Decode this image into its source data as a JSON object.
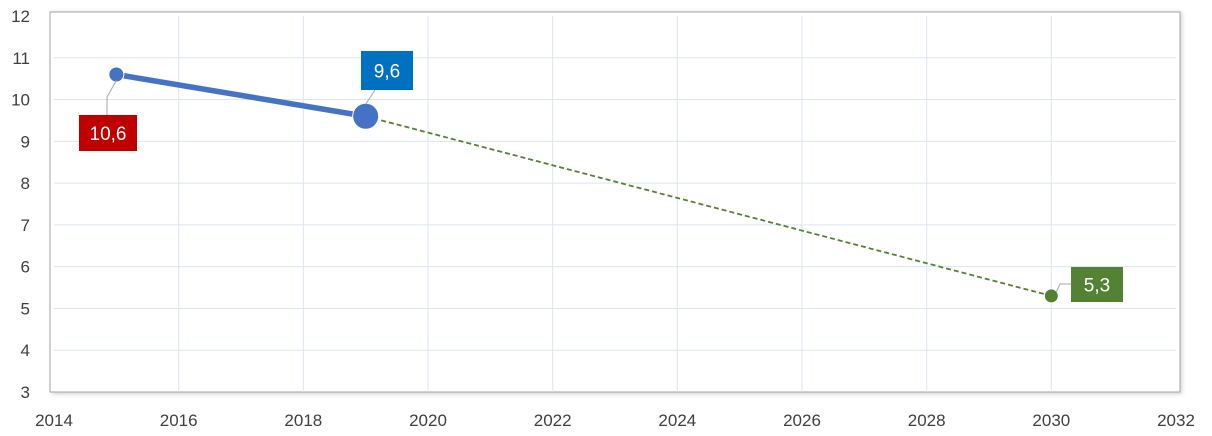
{
  "chart_data": {
    "type": "line",
    "title": "",
    "xlabel": "",
    "ylabel": "",
    "xlim": [
      2014,
      2032
    ],
    "ylim": [
      3,
      12
    ],
    "x_ticks": [
      "2014",
      "2016",
      "2018",
      "2020",
      "2022",
      "2024",
      "2026",
      "2028",
      "2030",
      "2032"
    ],
    "y_ticks": [
      "3",
      "4",
      "5",
      "6",
      "7",
      "8",
      "9",
      "10",
      "11",
      "12"
    ],
    "grid": true,
    "legend": "none",
    "series": [
      {
        "style": "solid",
        "color": "#4472C4",
        "points": [
          {
            "x": 2015,
            "y": 10.6,
            "label": "10,6",
            "label_color": "#C00000"
          },
          {
            "x": 2019,
            "y": 9.6,
            "label": "9,6",
            "label_color": "#0070C0"
          }
        ]
      },
      {
        "style": "dashed",
        "color": "#548235",
        "points": [
          {
            "x": 2019,
            "y": 9.6
          },
          {
            "x": 2030,
            "y": 5.3,
            "label": "5,3",
            "label_color": "#548235"
          }
        ]
      }
    ]
  }
}
